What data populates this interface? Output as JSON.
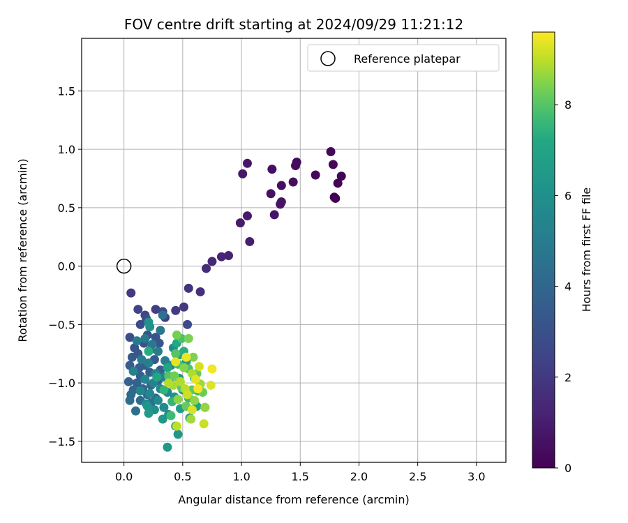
{
  "chart_data": {
    "type": "scatter",
    "title": "FOV centre drift starting at 2024/09/29 11:21:12",
    "xlabel": "Angular distance from reference (arcmin)",
    "ylabel": "Rotation from reference (arcmin)",
    "xlim": [
      -0.36,
      3.25
    ],
    "ylim": [
      -1.68,
      1.95
    ],
    "xticks": [
      0.0,
      0.5,
      1.0,
      1.5,
      2.0,
      2.5,
      3.0
    ],
    "xtick_labels": [
      "0.0",
      "0.5",
      "1.0",
      "1.5",
      "2.0",
      "2.5",
      "3.0"
    ],
    "yticks": [
      -1.5,
      -1.0,
      -0.5,
      0.0,
      0.5,
      1.0,
      1.5
    ],
    "ytick_labels": [
      "−1.5",
      "−1.0",
      "−0.5",
      "0.0",
      "0.5",
      "1.0",
      "1.5"
    ],
    "grid": true,
    "legend": {
      "position": "top-right",
      "entries": [
        "Reference platepar"
      ]
    },
    "reference_point": {
      "x": 0.0,
      "y": 0.0
    },
    "colorbar": {
      "label": "Hours from first FF file",
      "min": 0,
      "max": 9.6,
      "ticks": [
        0,
        2,
        4,
        6,
        8
      ],
      "tick_labels": [
        "0",
        "2",
        "4",
        "6",
        "8"
      ],
      "colormap": "viridis"
    },
    "points": [
      [
        1.79,
        0.59,
        0.0
      ],
      [
        1.8,
        0.58,
        0.0
      ],
      [
        1.82,
        0.71,
        0.05
      ],
      [
        1.85,
        0.77,
        0.1
      ],
      [
        1.78,
        0.87,
        0.15
      ],
      [
        1.76,
        0.98,
        0.2
      ],
      [
        1.63,
        0.78,
        0.25
      ],
      [
        1.47,
        0.89,
        0.3
      ],
      [
        1.46,
        0.86,
        0.35
      ],
      [
        1.44,
        0.72,
        0.4
      ],
      [
        1.34,
        0.69,
        0.45
      ],
      [
        1.26,
        0.83,
        0.5
      ],
      [
        1.25,
        0.62,
        0.55
      ],
      [
        1.34,
        0.55,
        0.6
      ],
      [
        1.33,
        0.53,
        0.65
      ],
      [
        1.28,
        0.44,
        0.7
      ],
      [
        1.05,
        0.88,
        0.75
      ],
      [
        1.01,
        0.79,
        0.8
      ],
      [
        1.05,
        0.43,
        0.9
      ],
      [
        0.99,
        0.37,
        0.95
      ],
      [
        1.07,
        0.21,
        1.0
      ],
      [
        0.89,
        0.09,
        1.2
      ],
      [
        0.83,
        0.08,
        1.3
      ],
      [
        0.75,
        0.04,
        1.4
      ],
      [
        0.7,
        -0.02,
        1.5
      ],
      [
        0.65,
        -0.22,
        1.7
      ],
      [
        0.55,
        -0.19,
        1.8
      ],
      [
        0.06,
        -0.23,
        2.0
      ],
      [
        0.51,
        -0.35,
        2.0
      ],
      [
        0.44,
        -0.38,
        2.1
      ],
      [
        0.35,
        -0.44,
        2.2
      ],
      [
        0.27,
        -0.37,
        2.3
      ],
      [
        0.12,
        -0.37,
        2.4
      ],
      [
        0.18,
        -0.42,
        2.5
      ],
      [
        0.33,
        -0.39,
        2.6
      ],
      [
        0.54,
        -0.5,
        2.7
      ],
      [
        0.14,
        -0.5,
        2.8
      ],
      [
        0.19,
        -0.45,
        2.85
      ],
      [
        0.05,
        -0.61,
        2.9
      ],
      [
        0.2,
        -0.59,
        3.0
      ],
      [
        0.27,
        -0.61,
        3.05
      ],
      [
        0.09,
        -0.7,
        3.1
      ],
      [
        0.17,
        -0.66,
        3.15
      ],
      [
        0.3,
        -0.66,
        3.2
      ],
      [
        0.22,
        -0.72,
        3.25
      ],
      [
        0.12,
        -0.75,
        3.3
      ],
      [
        0.07,
        -0.78,
        3.4
      ],
      [
        0.26,
        -0.8,
        3.45
      ],
      [
        0.18,
        -0.85,
        3.5
      ],
      [
        0.05,
        -0.85,
        3.55
      ],
      [
        0.13,
        -0.87,
        3.6
      ],
      [
        0.22,
        -0.91,
        3.65
      ],
      [
        0.31,
        -0.89,
        3.7
      ],
      [
        0.14,
        -0.94,
        3.75
      ],
      [
        0.04,
        -0.99,
        3.8
      ],
      [
        0.11,
        -1.0,
        3.85
      ],
      [
        0.23,
        -1.02,
        3.9
      ],
      [
        0.29,
        -0.98,
        3.95
      ],
      [
        0.08,
        -1.06,
        4.0
      ],
      [
        0.16,
        -1.05,
        4.05
      ],
      [
        0.06,
        -1.1,
        4.1
      ],
      [
        0.2,
        -1.1,
        4.15
      ],
      [
        0.27,
        -1.13,
        4.2
      ],
      [
        0.14,
        -1.15,
        4.25
      ],
      [
        0.05,
        -1.15,
        4.3
      ],
      [
        0.23,
        -1.17,
        4.35
      ],
      [
        0.1,
        -1.24,
        4.4
      ],
      [
        0.33,
        -0.42,
        4.5
      ],
      [
        0.31,
        -0.55,
        4.7
      ],
      [
        0.18,
        -0.62,
        4.8
      ],
      [
        0.24,
        -0.67,
        4.85
      ],
      [
        0.11,
        -0.64,
        4.9
      ],
      [
        0.29,
        -0.73,
        5.0
      ],
      [
        0.15,
        -0.8,
        5.05
      ],
      [
        0.35,
        -0.81,
        5.1
      ],
      [
        0.21,
        -0.83,
        5.15
      ],
      [
        0.08,
        -0.9,
        5.2
      ],
      [
        0.27,
        -0.92,
        5.25
      ],
      [
        0.34,
        -0.95,
        5.3
      ],
      [
        0.18,
        -0.97,
        5.35
      ],
      [
        0.25,
        -1.0,
        5.4
      ],
      [
        0.31,
        -1.05,
        5.45
      ],
      [
        0.14,
        -1.07,
        5.5
      ],
      [
        0.22,
        -1.09,
        5.55
      ],
      [
        0.37,
        -1.08,
        5.6
      ],
      [
        0.29,
        -1.15,
        5.65
      ],
      [
        0.19,
        -1.18,
        5.7
      ],
      [
        0.34,
        -1.21,
        5.75
      ],
      [
        0.42,
        -0.7,
        5.8
      ],
      [
        0.4,
        -0.85,
        5.85
      ],
      [
        0.26,
        -1.23,
        5.9
      ],
      [
        0.38,
        -1.27,
        6.0
      ],
      [
        0.43,
        -1.12,
        6.05
      ],
      [
        0.22,
        -0.52,
        6.1
      ],
      [
        0.21,
        -0.48,
        6.15
      ],
      [
        0.47,
        -0.96,
        6.2
      ],
      [
        0.2,
        -1.2,
        6.25
      ],
      [
        0.33,
        -1.31,
        6.3
      ],
      [
        0.46,
        -1.44,
        6.35
      ],
      [
        0.37,
        -1.55,
        6.4
      ],
      [
        0.21,
        -1.26,
        6.5
      ],
      [
        0.44,
        -1.37,
        6.55
      ],
      [
        0.48,
        -1.22,
        6.6
      ],
      [
        0.5,
        -1.06,
        6.7
      ],
      [
        0.39,
        -0.99,
        6.75
      ],
      [
        0.53,
        -0.82,
        6.8
      ],
      [
        0.47,
        -0.76,
        6.85
      ],
      [
        0.56,
        -1.3,
        6.9
      ],
      [
        0.62,
        -1.2,
        7.0
      ],
      [
        0.37,
        -0.87,
        7.05
      ],
      [
        0.28,
        -0.95,
        7.1
      ],
      [
        0.45,
        -0.66,
        7.2
      ],
      [
        0.21,
        -0.73,
        7.3
      ],
      [
        0.51,
        -0.73,
        7.35
      ],
      [
        0.6,
        -0.96,
        7.4
      ],
      [
        0.34,
        -1.06,
        7.5
      ],
      [
        0.41,
        -1.16,
        7.55
      ],
      [
        0.55,
        -1.13,
        7.6
      ],
      [
        0.63,
        -1.07,
        7.65
      ],
      [
        0.4,
        -1.28,
        7.7
      ],
      [
        0.69,
        -1.21,
        7.75
      ],
      [
        0.46,
        -0.84,
        7.8
      ],
      [
        0.49,
        -0.62,
        7.85
      ],
      [
        0.55,
        -0.88,
        7.9
      ],
      [
        0.38,
        -0.94,
        7.95
      ],
      [
        0.44,
        -0.75,
        8.0
      ],
      [
        0.49,
        -1.04,
        8.05
      ],
      [
        0.58,
        -1.06,
        8.1
      ],
      [
        0.62,
        -0.92,
        8.15
      ],
      [
        0.53,
        -1.2,
        8.2
      ],
      [
        0.67,
        -1.08,
        8.25
      ],
      [
        0.43,
        -0.94,
        8.3
      ],
      [
        0.45,
        -0.59,
        8.35
      ],
      [
        0.55,
        -0.62,
        8.4
      ],
      [
        0.59,
        -0.78,
        8.45
      ],
      [
        0.51,
        -0.87,
        8.5
      ],
      [
        0.46,
        -1.14,
        8.55
      ],
      [
        0.6,
        -1.15,
        8.6
      ],
      [
        0.69,
        -1.21,
        8.65
      ],
      [
        0.65,
        -1.01,
        8.7
      ],
      [
        0.57,
        -1.31,
        8.75
      ],
      [
        0.42,
        -1.02,
        8.8
      ],
      [
        0.58,
        -0.92,
        8.85
      ],
      [
        0.48,
        -0.99,
        8.9
      ],
      [
        0.38,
        -1.0,
        8.95
      ],
      [
        0.52,
        -1.05,
        9.0
      ],
      [
        0.45,
        -1.37,
        9.05
      ],
      [
        0.68,
        -1.35,
        9.1
      ],
      [
        0.54,
        -1.1,
        9.15
      ],
      [
        0.64,
        -0.86,
        9.2
      ],
      [
        0.58,
        -1.23,
        9.25
      ],
      [
        0.74,
        -1.02,
        9.3
      ],
      [
        0.61,
        -0.97,
        9.35
      ],
      [
        0.44,
        -0.82,
        9.4
      ],
      [
        0.53,
        -0.78,
        9.45
      ],
      [
        0.75,
        -0.88,
        9.5
      ],
      [
        0.63,
        -1.05,
        9.55
      ]
    ]
  }
}
